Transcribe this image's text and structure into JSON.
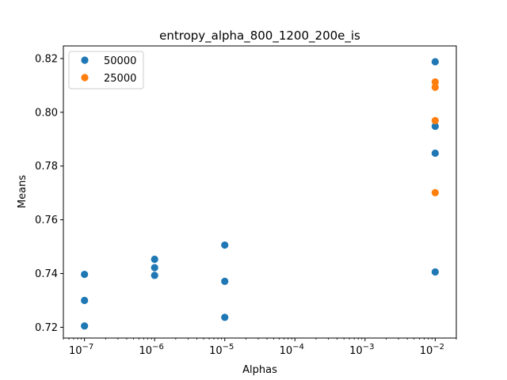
{
  "chart_data": {
    "type": "scatter",
    "title": "entropy_alpha_800_1200_200e_is",
    "xlabel": "Alphas",
    "ylabel": "Means",
    "xscale": "log",
    "xlim": [
      5e-08,
      0.02
    ],
    "ylim": [
      0.716,
      0.8247
    ],
    "x_ticks": [
      {
        "value": 1e-07,
        "mant": "10",
        "exp": "−7"
      },
      {
        "value": 1e-06,
        "mant": "10",
        "exp": "−6"
      },
      {
        "value": 1e-05,
        "mant": "10",
        "exp": "−5"
      },
      {
        "value": 0.0001,
        "mant": "10",
        "exp": "−4"
      },
      {
        "value": 0.001,
        "mant": "10",
        "exp": "−3"
      },
      {
        "value": 0.01,
        "mant": "10",
        "exp": "−2"
      }
    ],
    "y_ticks": [
      {
        "value": 0.72,
        "label": "0.72"
      },
      {
        "value": 0.74,
        "label": "0.74"
      },
      {
        "value": 0.76,
        "label": "0.76"
      },
      {
        "value": 0.78,
        "label": "0.78"
      },
      {
        "value": 0.8,
        "label": "0.80"
      },
      {
        "value": 0.82,
        "label": "0.82"
      }
    ],
    "legend_position": "top-left",
    "grid": false,
    "series": [
      {
        "name": "50000",
        "color": "#1f77b4",
        "points": [
          {
            "x": 1e-07,
            "y": 0.7397
          },
          {
            "x": 1e-07,
            "y": 0.73
          },
          {
            "x": 1e-07,
            "y": 0.7205
          },
          {
            "x": 1e-06,
            "y": 0.7453
          },
          {
            "x": 1e-06,
            "y": 0.7422
          },
          {
            "x": 1e-06,
            "y": 0.7393
          },
          {
            "x": 1e-05,
            "y": 0.7506
          },
          {
            "x": 1e-05,
            "y": 0.7371
          },
          {
            "x": 1e-05,
            "y": 0.7237
          },
          {
            "x": 0.01,
            "y": 0.8188
          },
          {
            "x": 0.01,
            "y": 0.7948
          },
          {
            "x": 0.01,
            "y": 0.7848
          },
          {
            "x": 0.01,
            "y": 0.7406
          }
        ]
      },
      {
        "name": "25000",
        "color": "#ff7f0e",
        "points": [
          {
            "x": 0.01,
            "y": 0.8113
          },
          {
            "x": 0.01,
            "y": 0.8093
          },
          {
            "x": 0.01,
            "y": 0.7969
          },
          {
            "x": 0.01,
            "y": 0.7701
          }
        ]
      }
    ]
  }
}
